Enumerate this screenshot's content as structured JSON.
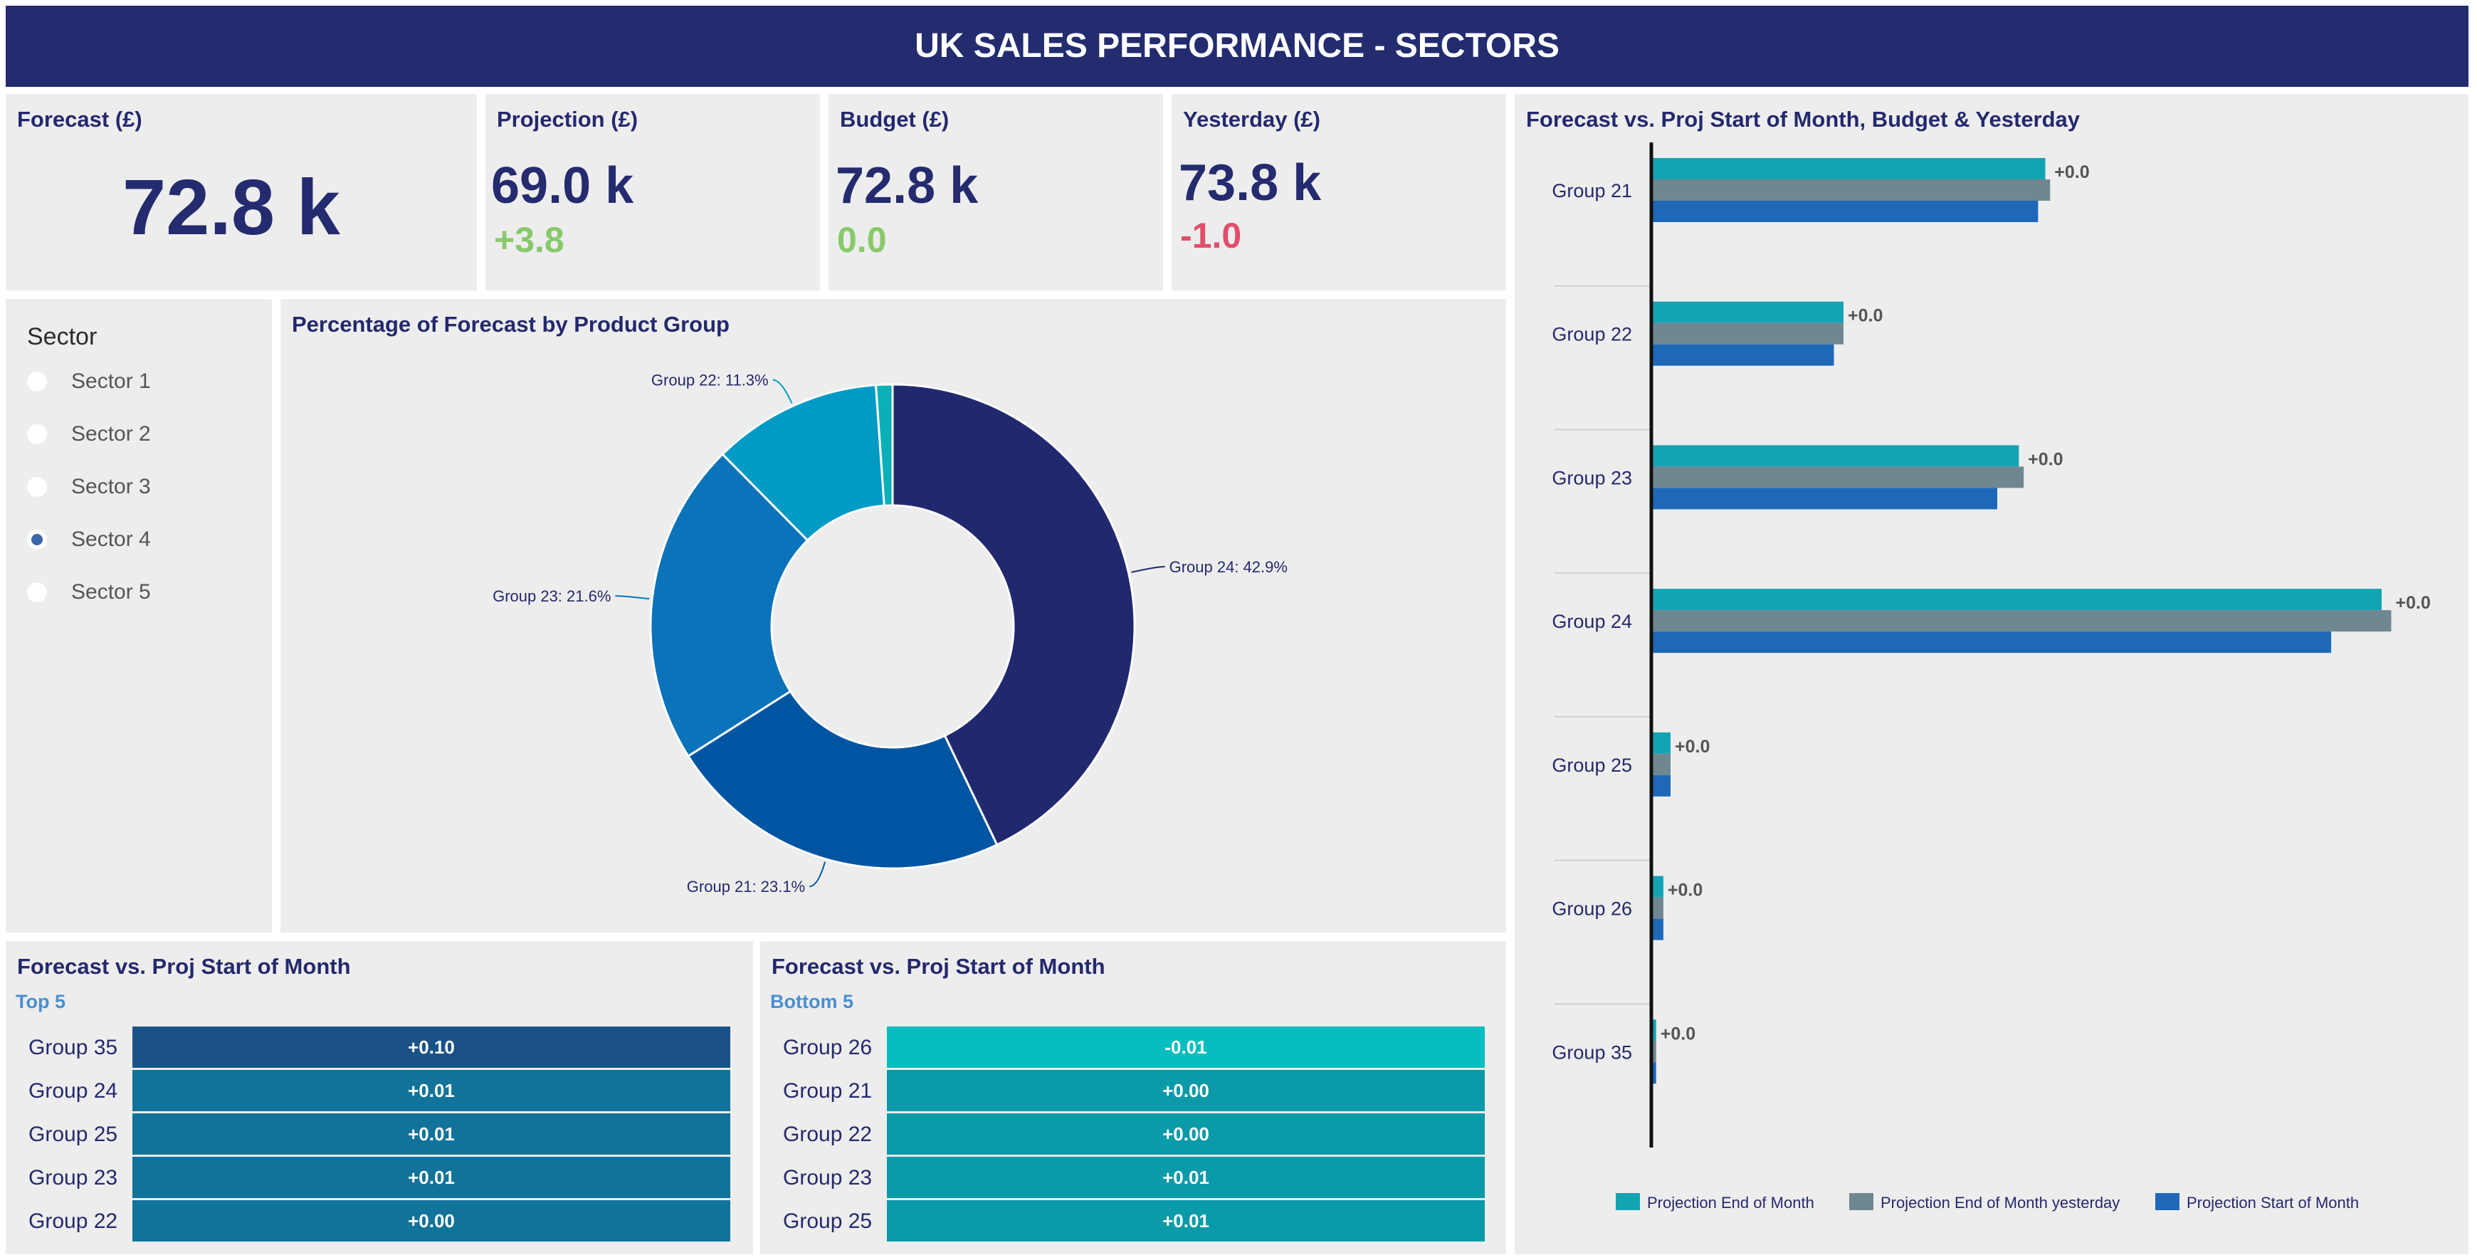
{
  "header": {
    "title": "UK SALES PERFORMANCE - SECTORS"
  },
  "kpis": {
    "forecast": {
      "label": "Forecast (£)",
      "value": "72.8 k"
    },
    "projection": {
      "label": "Projection (£)",
      "value": "69.0 k",
      "delta": "+3.8",
      "delta_color": "#88c96a"
    },
    "budget": {
      "label": "Budget (£)",
      "value": "72.8 k",
      "delta": "0.0",
      "delta_color": "#88c96a"
    },
    "yesterday": {
      "label": "Yesterday (£)",
      "value": "73.8 k",
      "delta": "-1.0",
      "delta_color": "#e04f6a"
    }
  },
  "sector_filter": {
    "title": "Sector",
    "options": [
      "Sector 1",
      "Sector 2",
      "Sector 3",
      "Sector 4",
      "Sector 5"
    ],
    "selected": "Sector 4"
  },
  "donut_panel": {
    "title": "Percentage of Forecast by Product Group"
  },
  "bar_panel": {
    "title": "Forecast vs. Proj Start of Month, Budget & Yesterday"
  },
  "top_table": {
    "title": "Forecast vs. Proj Start of Month",
    "subtitle": "Top 5",
    "rows": [
      {
        "group": "Group 35",
        "value": "+0.10",
        "color": "#1a5287"
      },
      {
        "group": "Group 24",
        "value": "+0.01",
        "color": "#12739a"
      },
      {
        "group": "Group 25",
        "value": "+0.01",
        "color": "#12739a"
      },
      {
        "group": "Group 23",
        "value": "+0.01",
        "color": "#12739a"
      },
      {
        "group": "Group 22",
        "value": "+0.00",
        "color": "#12739a"
      }
    ]
  },
  "bottom_table": {
    "title": "Forecast vs. Proj Start of Month",
    "subtitle": "Bottom 5",
    "rows": [
      {
        "group": "Group 26",
        "value": "-0.01",
        "color": "#06bdbf"
      },
      {
        "group": "Group 21",
        "value": "+0.00",
        "color": "#0a9aa8"
      },
      {
        "group": "Group 22",
        "value": "+0.00",
        "color": "#0a9aa8"
      },
      {
        "group": "Group 23",
        "value": "+0.01",
        "color": "#0a9aa8"
      },
      {
        "group": "Group 25",
        "value": "+0.01",
        "color": "#0a9aa8"
      }
    ]
  },
  "chart_data": [
    {
      "type": "pie",
      "donut": true,
      "title": "Percentage of Forecast by Product Group",
      "slices": [
        {
          "name": "Group 24",
          "value": 42.9,
          "label": "Group 24: 42.9%",
          "color": "#21296e"
        },
        {
          "name": "Group 21",
          "value": 23.1,
          "label": "Group 21: 23.1%",
          "color": "#0055a2"
        },
        {
          "name": "Group 23",
          "value": 21.6,
          "label": "Group 23: 21.6%",
          "color": "#0a73ba"
        },
        {
          "name": "Group 22",
          "value": 11.3,
          "label": "Group 22: 11.3%",
          "color": "#009bc5"
        },
        {
          "name": "Other",
          "value": 1.1,
          "label": "",
          "color": "#0ab0b8"
        }
      ]
    },
    {
      "type": "bar",
      "orientation": "horizontal",
      "title": "Forecast vs. Proj Start of Month, Budget & Yesterday",
      "categories": [
        "Group 21",
        "Group 22",
        "Group 23",
        "Group 24",
        "Group 25",
        "Group 26",
        "Group 35"
      ],
      "series": [
        {
          "name": "Projection End of Month",
          "color": "#14a3b3",
          "values": [
            16.4,
            8.0,
            15.3,
            30.4,
            0.8,
            0.5,
            0.2
          ]
        },
        {
          "name": "Projection End of Month yesterday",
          "color": "#6f8791",
          "values": [
            16.6,
            8.0,
            15.5,
            30.8,
            0.8,
            0.5,
            0.2
          ]
        },
        {
          "name": "Projection Start of Month",
          "color": "#1f68b8",
          "values": [
            16.1,
            7.6,
            14.4,
            28.3,
            0.8,
            0.5,
            0.2
          ]
        }
      ],
      "data_labels": [
        "+0.0",
        "+0.0",
        "+0.0",
        "+0.0",
        "+0.0",
        "+0.0",
        "+0.0"
      ],
      "xlim": [
        0,
        32
      ],
      "legend": "bottom"
    }
  ]
}
